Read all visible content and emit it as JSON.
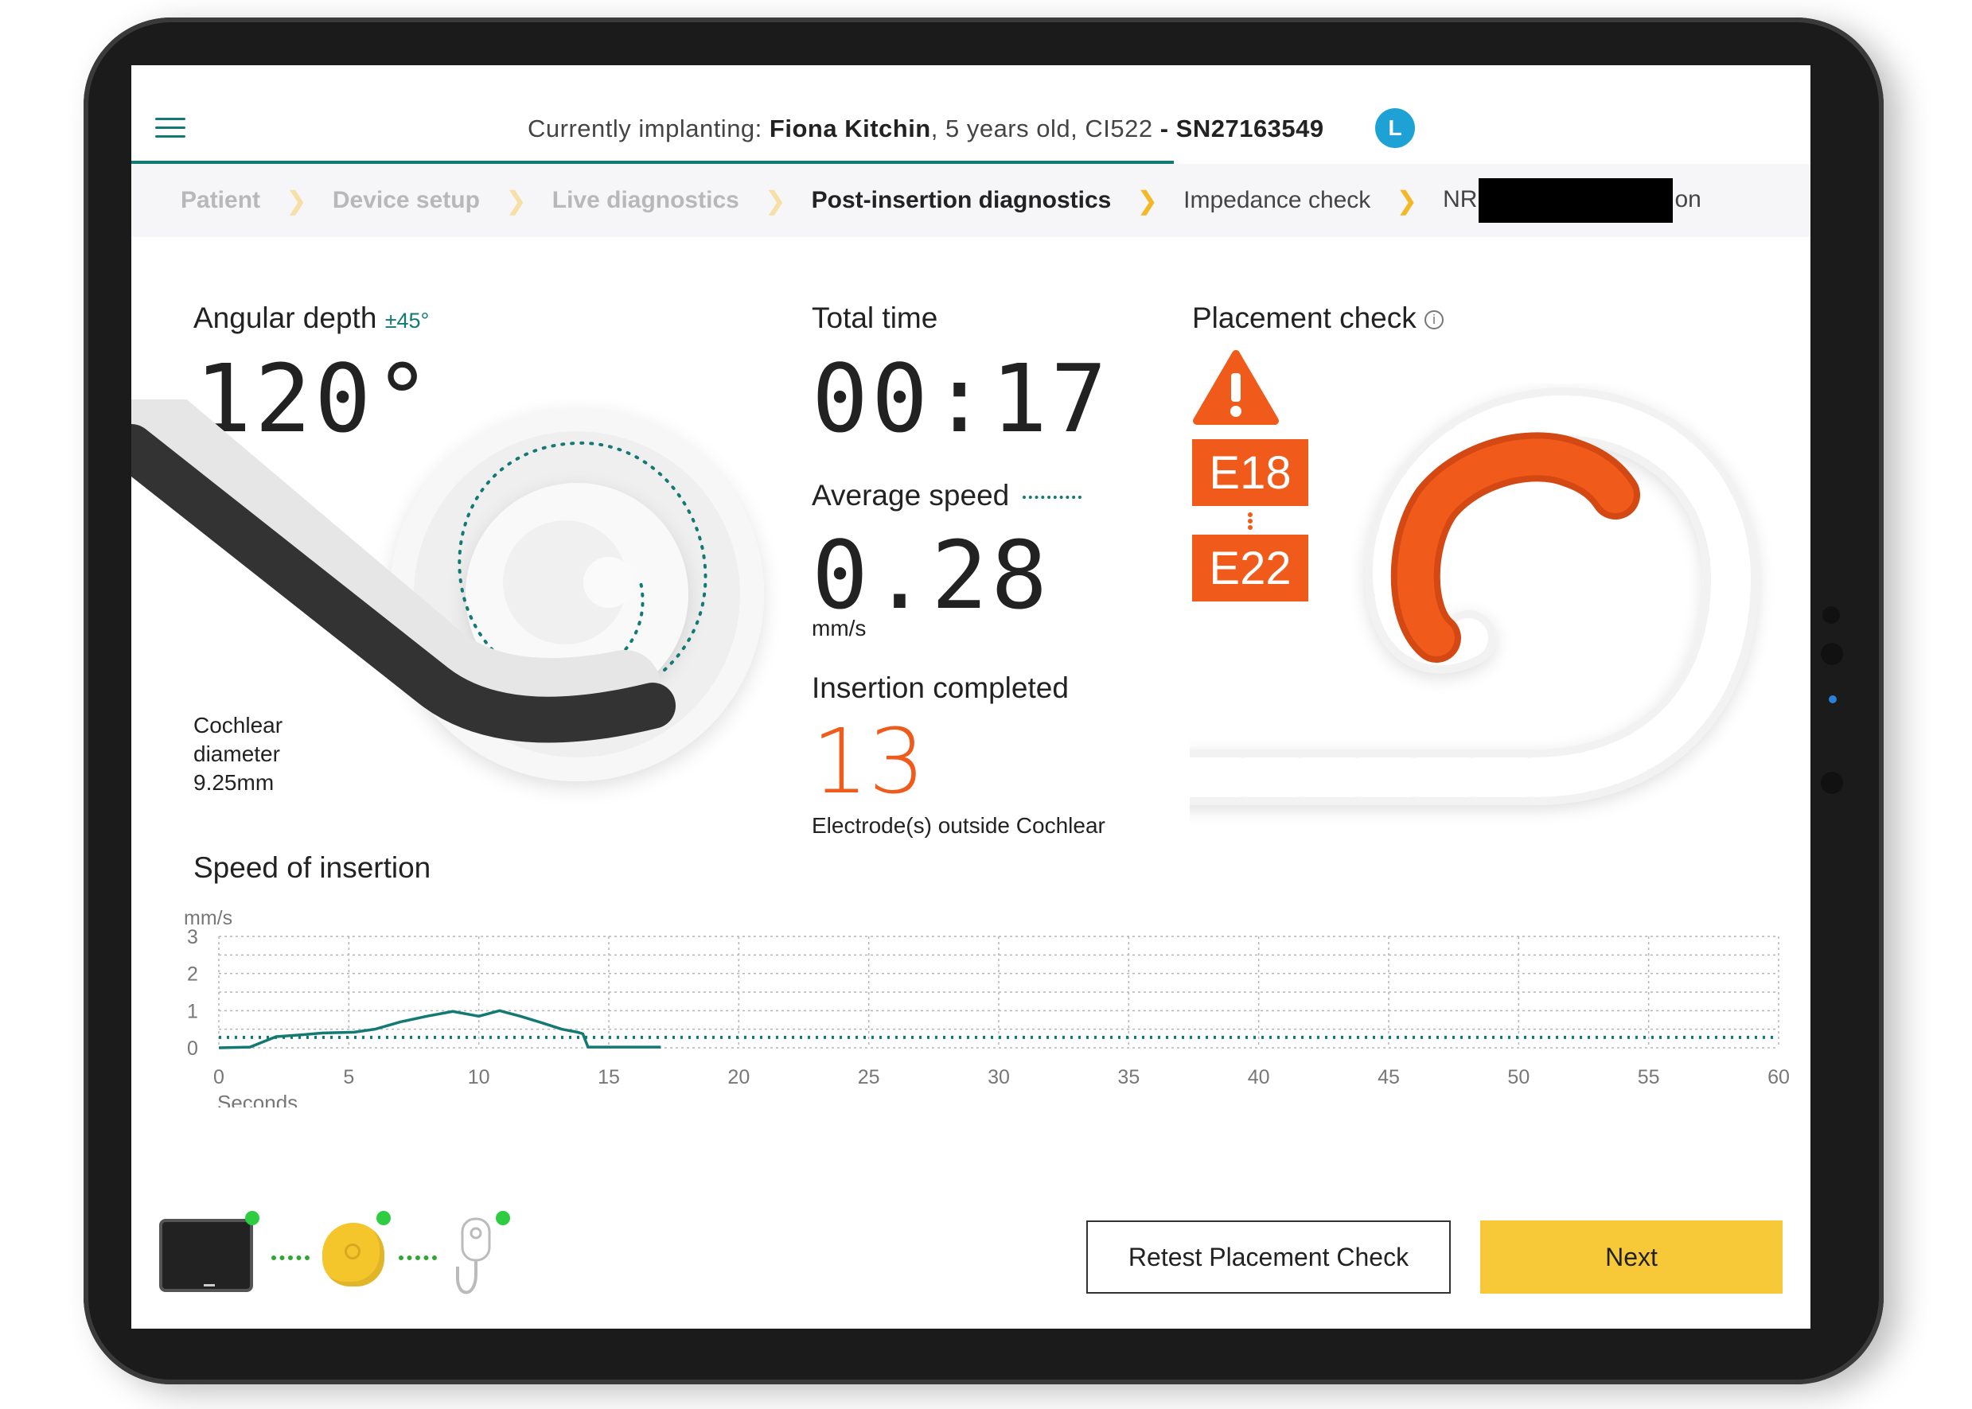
{
  "header": {
    "prefix": "Currently implanting:",
    "patient_name": "Fiona Kitchin",
    "age": ", 5 years old,",
    "device": "CI522",
    "serial": "- SN27163549",
    "side": "L"
  },
  "breadcrumb": {
    "items": [
      {
        "label": "Patient",
        "state": "done"
      },
      {
        "label": "Device setup",
        "state": "done"
      },
      {
        "label": "Live diagnostics",
        "state": "done"
      },
      {
        "label": "Post-insertion diagnostics",
        "state": "current"
      },
      {
        "label": "Impedance check",
        "state": "upcoming"
      }
    ],
    "last_prefix": "NR",
    "last_suffix": "on"
  },
  "angular_depth": {
    "title": "Angular depth",
    "tolerance": "±45°",
    "value": "120°",
    "cochlear_diameter_label": "Cochlear\ndiameter\n9.25mm",
    "line1": "Cochlear",
    "line2": "diameter",
    "line3": "9.25mm"
  },
  "total_time": {
    "title": "Total time",
    "value": "00:17"
  },
  "average_speed": {
    "title": "Average speed",
    "value": "0.28",
    "unit": "mm/s"
  },
  "insertion": {
    "title": "Insertion completed",
    "value": "13",
    "note": "Electrode(s) outside Cochlear"
  },
  "placement": {
    "title": "Placement check",
    "codes": [
      "E18",
      "E22"
    ]
  },
  "speed_chart_title": "Speed of insertion",
  "chart_data": {
    "type": "line",
    "title": "Speed of insertion",
    "ylabel": "mm/s",
    "xlabel": "Seconds",
    "xlim": [
      0,
      60
    ],
    "ylim": [
      0,
      3
    ],
    "x_ticks": [
      0,
      5,
      10,
      15,
      20,
      25,
      30,
      35,
      40,
      45,
      50,
      55,
      60
    ],
    "y_ticks": [
      0,
      1,
      2,
      3
    ],
    "series": [
      {
        "x": [
          0,
          1.2,
          2.2,
          3.2,
          4.0,
          5.2,
          6.0,
          7.0,
          8.0,
          9.0,
          10.0,
          10.8,
          11.6,
          12.4,
          13.2,
          13.8,
          14.0,
          14.2,
          15.5,
          17.0
        ],
        "y": [
          0,
          0.02,
          0.3,
          0.35,
          0.4,
          0.42,
          0.5,
          0.7,
          0.85,
          0.98,
          0.85,
          1.0,
          0.85,
          0.68,
          0.5,
          0.42,
          0.38,
          0.02,
          0.02,
          0.02
        ],
        "color": "#137a73"
      }
    ],
    "average_line": 0.28,
    "grid": true
  },
  "buttons": {
    "retest": "Retest Placement Check",
    "next": "Next"
  },
  "colors": {
    "teal": "#137a73",
    "orange": "#f05a1a",
    "yellow": "#f7c938",
    "badge_blue": "#1ea1d4"
  }
}
